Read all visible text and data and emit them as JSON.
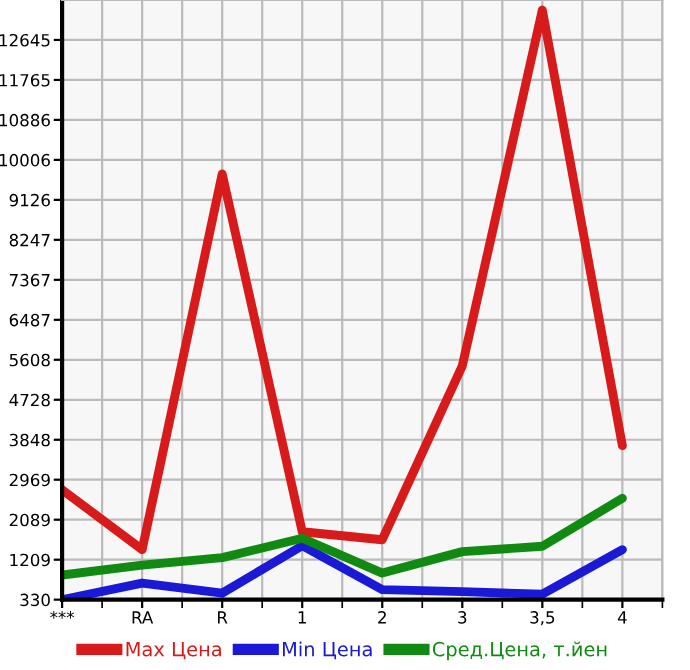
{
  "chart_data": {
    "type": "line",
    "categories": [
      "***",
      "RA",
      "R",
      "1",
      "2",
      "3",
      "3,5",
      "4"
    ],
    "series": [
      {
        "name": "Max Цена",
        "color": "#d71a1a",
        "values": [
          2749,
          1430,
          9698,
          1825,
          1649,
          5476,
          13304,
          3717
        ]
      },
      {
        "name": "Min Цена",
        "color": "#1a1ad6",
        "values": [
          330,
          695,
          475,
          1517,
          550,
          506,
          449,
          1430
        ]
      },
      {
        "name": "Сред.Цена, т.йен",
        "color": "#118a11",
        "values": [
          871,
          1091,
          1254,
          1680,
          915,
          1386,
          1504,
          2560
        ]
      }
    ],
    "ylim": [
      330,
      13524
    ],
    "yticks": [
      330,
      1209,
      2089,
      2969,
      3848,
      4728,
      5608,
      6487,
      7367,
      8247,
      9126,
      10006,
      10886,
      11765,
      12645
    ],
    "grid": true,
    "legend": "bottom",
    "marker": "none",
    "line_style": "solid"
  }
}
